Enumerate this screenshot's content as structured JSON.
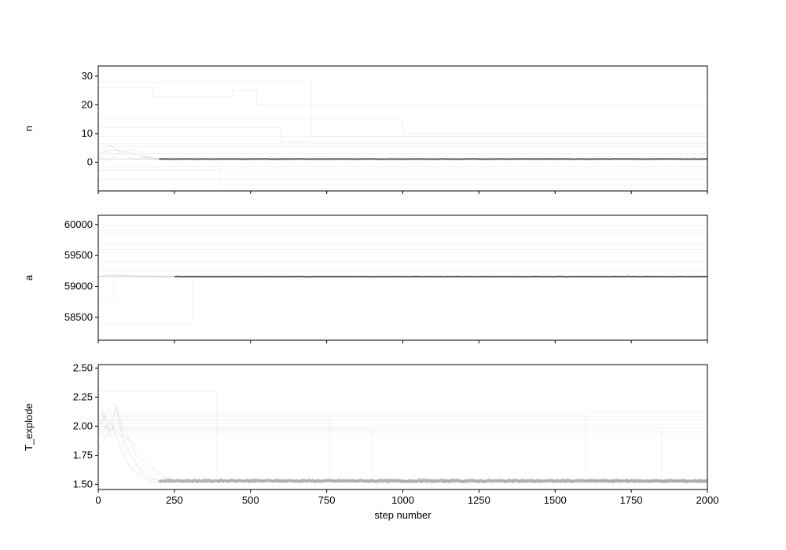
{
  "chart_data": [
    {
      "type": "line",
      "ylabel": "n",
      "xlim": [
        0,
        2000
      ],
      "ylim": [
        -10,
        33.5
      ],
      "yticks": [
        0,
        10,
        20,
        30
      ],
      "yticklabels": [
        "0",
        "10",
        "20",
        "30"
      ],
      "show_xticklabels": false,
      "colors": {
        "walkers": "#000000",
        "converged": "#444444"
      },
      "series": [
        {
          "x": [
            0,
            30,
            60,
            90,
            120,
            150,
            180,
            200,
            2000
          ],
          "y": [
            3,
            4,
            4.2,
            3.5,
            2.5,
            1.5,
            1.2,
            1.1,
            1.1
          ]
        },
        {
          "x": [
            0,
            50,
            100,
            150,
            200,
            2000
          ],
          "y": [
            5,
            2.5,
            4.5,
            2,
            1.1,
            1.1
          ]
        },
        {
          "x": [
            0,
            40,
            80,
            120,
            160,
            200,
            2000
          ],
          "y": [
            1,
            6,
            3,
            5,
            1.8,
            1.1,
            1.1
          ]
        },
        {
          "x": [
            0,
            60,
            120,
            180,
            2000
          ],
          "y": [
            8,
            4.5,
            2.5,
            1.1,
            1.1
          ]
        },
        {
          "x": [
            0,
            30,
            70,
            120,
            170,
            210,
            2000
          ],
          "y": [
            2,
            0.5,
            3,
            1,
            2,
            1.1,
            1.1
          ]
        },
        {
          "x": [
            0,
            2000
          ],
          "y": [
            1.1,
            1.1
          ]
        },
        {
          "x": [
            0,
            2000
          ],
          "y": [
            1.2,
            1.2
          ]
        },
        {
          "x": [
            0,
            2000
          ],
          "y": [
            1.0,
            1.0
          ]
        },
        {
          "x": [
            0,
            100,
            350,
            700,
            700,
            2000
          ],
          "y": [
            28,
            28,
            28,
            28,
            9,
            9
          ]
        },
        {
          "x": [
            0,
            180,
            180,
            440,
            440,
            520,
            520,
            2000
          ],
          "y": [
            26,
            26,
            23,
            23,
            25,
            25,
            20,
            20
          ]
        },
        {
          "x": [
            0,
            1000,
            1000,
            2000
          ],
          "y": [
            15,
            15,
            10,
            10
          ]
        },
        {
          "x": [
            0,
            600,
            600,
            2000
          ],
          "y": [
            12,
            12,
            7,
            7
          ]
        },
        {
          "x": [
            0,
            2000
          ],
          "y": [
            5.5,
            5.5
          ]
        },
        {
          "x": [
            0,
            2000
          ],
          "y": [
            6.5,
            6.5
          ]
        },
        {
          "x": [
            0,
            2000
          ],
          "y": [
            -1.5,
            -1.5
          ]
        },
        {
          "x": [
            0,
            2000
          ],
          "y": [
            -2.5,
            -2.5
          ]
        },
        {
          "x": [
            0,
            2000
          ],
          "y": [
            -6,
            -6
          ]
        },
        {
          "x": [
            0,
            400,
            400,
            2000
          ],
          "y": [
            -3,
            -3,
            -8,
            -8
          ]
        },
        {
          "x": [
            0,
            2000
          ],
          "y": [
            3,
            3
          ]
        },
        {
          "x": [
            0,
            2000
          ],
          "y": [
            9,
            9
          ]
        }
      ]
    },
    {
      "type": "line",
      "ylabel": "a",
      "xlim": [
        0,
        2000
      ],
      "ylim": [
        58130,
        60150
      ],
      "yticks": [
        58500,
        59000,
        59500,
        60000
      ],
      "yticklabels": [
        "58500",
        "59000",
        "59500",
        "60000"
      ],
      "show_xticklabels": false,
      "colors": {
        "walkers": "#000000",
        "converged": "#444444"
      },
      "series": [
        {
          "x": [
            0,
            20,
            50,
            80,
            120,
            160,
            200,
            250,
            2000
          ],
          "y": [
            59150,
            59180,
            59185,
            59180,
            59175,
            59168,
            59160,
            59158,
            59158
          ]
        },
        {
          "x": [
            0,
            10,
            40,
            90,
            150,
            220,
            2000
          ],
          "y": [
            59100,
            59170,
            59182,
            59178,
            59165,
            59158,
            59158
          ]
        },
        {
          "x": [
            0,
            30,
            60,
            120,
            200,
            2000
          ],
          "y": [
            59050,
            59160,
            59183,
            59172,
            59160,
            59158
          ]
        },
        {
          "x": [
            0,
            2000
          ],
          "y": [
            59158,
            59158
          ]
        },
        {
          "x": [
            0,
            2000
          ],
          "y": [
            59161,
            59161
          ]
        },
        {
          "x": [
            0,
            2000
          ],
          "y": [
            59155,
            59155
          ]
        },
        {
          "x": [
            0,
            15,
            15,
            310,
            310,
            2000
          ],
          "y": [
            58400,
            58400,
            58400,
            58400,
            59158,
            59158
          ]
        },
        {
          "x": [
            0,
            2000
          ],
          "y": [
            59900,
            59900
          ]
        },
        {
          "x": [
            0,
            2000
          ],
          "y": [
            59850,
            59850
          ]
        },
        {
          "x": [
            0,
            2000
          ],
          "y": [
            59700,
            59700
          ]
        },
        {
          "x": [
            0,
            2000
          ],
          "y": [
            59600,
            59600
          ]
        },
        {
          "x": [
            0,
            2000
          ],
          "y": [
            59550,
            59550
          ]
        },
        {
          "x": [
            0,
            2000
          ],
          "y": [
            59400,
            59400
          ]
        },
        {
          "x": [
            0,
            2000
          ],
          "y": [
            59300,
            59300
          ]
        },
        {
          "x": [
            0,
            2000
          ],
          "y": [
            59980,
            59980
          ]
        },
        {
          "x": [
            0,
            50,
            50,
            2000
          ],
          "y": [
            58800,
            58800,
            59158,
            59158
          ]
        },
        {
          "x": [
            0,
            2000
          ],
          "y": [
            59250,
            59250
          ]
        }
      ]
    },
    {
      "type": "line",
      "ylabel": "T_explode",
      "xlabel": "step number",
      "xlim": [
        0,
        2000
      ],
      "ylim": [
        1.455,
        2.53
      ],
      "yticks": [
        1.5,
        1.75,
        2.0,
        2.25,
        2.5
      ],
      "yticklabels": [
        "1.50",
        "1.75",
        "2.00",
        "2.25",
        "2.50"
      ],
      "xticks": [
        0,
        250,
        500,
        750,
        1000,
        1250,
        1500,
        1750,
        2000
      ],
      "xticklabels": [
        "0",
        "250",
        "500",
        "750",
        "1000",
        "1250",
        "1500",
        "1750",
        "2000"
      ],
      "show_xticklabels": true,
      "colors": {
        "walkers": "#000000",
        "converged": "#888888"
      },
      "series": [
        {
          "x": [
            0,
            20,
            40,
            60,
            80,
            100,
            120,
            140,
            160,
            180,
            200,
            2000
          ],
          "y": [
            1.95,
            2.1,
            1.9,
            2.2,
            1.85,
            1.9,
            1.75,
            1.7,
            1.62,
            1.55,
            1.53,
            1.53
          ]
        },
        {
          "x": [
            0,
            30,
            60,
            90,
            120,
            150,
            180,
            210,
            2000
          ],
          "y": [
            2.05,
            1.98,
            2.15,
            1.8,
            1.7,
            1.6,
            1.55,
            1.52,
            1.52
          ]
        },
        {
          "x": [
            0,
            25,
            50,
            75,
            100,
            125,
            150,
            175,
            2000
          ],
          "y": [
            2.3,
            2.0,
            1.95,
            1.85,
            1.65,
            1.6,
            1.55,
            1.52,
            1.52
          ]
        },
        {
          "x": [
            0,
            40,
            80,
            120,
            160,
            200,
            2000
          ],
          "y": [
            1.9,
            2.05,
            1.75,
            1.6,
            1.56,
            1.53,
            1.53
          ]
        },
        {
          "x": [
            0,
            50,
            100,
            150,
            200,
            250,
            2000
          ],
          "y": [
            2.0,
            2.2,
            1.9,
            1.7,
            1.58,
            1.53,
            1.53
          ]
        },
        {
          "x": [
            0,
            35,
            70,
            105,
            140,
            175,
            2000
          ],
          "y": [
            1.8,
            1.95,
            2.05,
            1.75,
            1.6,
            1.52,
            1.52
          ]
        },
        {
          "x": [
            0,
            60,
            120,
            180,
            240,
            2000
          ],
          "y": [
            2.15,
            1.95,
            1.85,
            1.65,
            1.52,
            1.52
          ]
        },
        {
          "x": [
            0,
            2000
          ],
          "y": [
            2.12,
            2.12
          ]
        },
        {
          "x": [
            0,
            2000
          ],
          "y": [
            2.06,
            2.06
          ]
        },
        {
          "x": [
            0,
            2000
          ],
          "y": [
            1.95,
            1.95
          ]
        },
        {
          "x": [
            0,
            2000
          ],
          "y": [
            1.92,
            1.92
          ]
        },
        {
          "x": [
            0,
            2000
          ],
          "y": [
            2.08,
            2.08
          ]
        },
        {
          "x": [
            0,
            2000
          ],
          "y": [
            1.98,
            1.98
          ]
        },
        {
          "x": [
            0,
            2000
          ],
          "y": [
            2.02,
            2.02
          ]
        },
        {
          "x": [
            0,
            250,
            250,
            390,
            390,
            2000
          ],
          "y": [
            2.3,
            2.3,
            2.3,
            2.3,
            1.53,
            1.53
          ]
        },
        {
          "x": [
            0,
            760,
            760,
            2000
          ],
          "y": [
            2.05,
            2.05,
            1.52,
            1.52
          ]
        },
        {
          "x": [
            0,
            1600,
            1600,
            2000
          ],
          "y": [
            2.1,
            2.1,
            1.53,
            1.53
          ]
        },
        {
          "x": [
            0,
            900,
            900,
            2000
          ],
          "y": [
            1.97,
            1.97,
            1.51,
            1.51
          ]
        },
        {
          "x": [
            0,
            1850,
            1850,
            2000
          ],
          "y": [
            2.0,
            2.0,
            1.52,
            1.52
          ]
        }
      ]
    }
  ]
}
